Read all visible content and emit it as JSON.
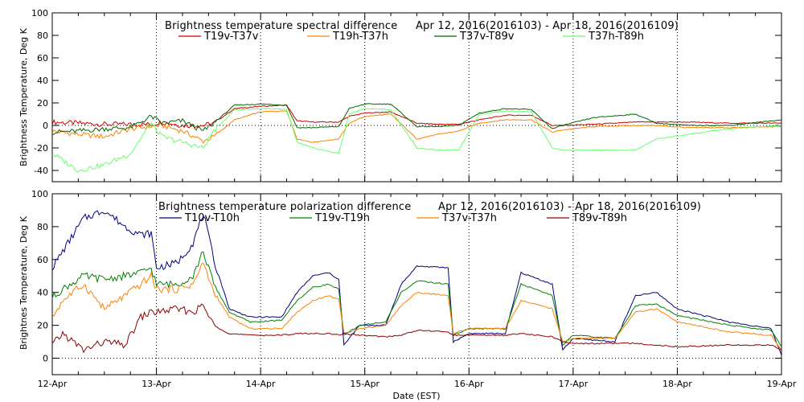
{
  "chart_data": [
    {
      "type": "line",
      "title": "Brightness temperature spectral difference",
      "date_range": "Apr 12, 2016(2016103) - Apr 18, 2016(2016109)",
      "ylabel": "Brightness Temperature, Deg K",
      "xlabel": "",
      "ylim": [
        -50,
        100
      ],
      "yticks": [
        -40,
        -20,
        0,
        20,
        40,
        60,
        80,
        100
      ],
      "xlim": [
        0,
        7
      ],
      "xgrid": [
        1,
        2,
        3,
        4,
        5,
        6
      ],
      "ygrid": [
        0
      ],
      "x": [
        0,
        0.25,
        0.5,
        0.75,
        0.95,
        1.05,
        1.25,
        1.45,
        1.55,
        1.75,
        2.0,
        2.25,
        2.35,
        2.5,
        2.75,
        2.85,
        3.0,
        3.25,
        3.5,
        3.7,
        3.9,
        4.1,
        4.35,
        4.6,
        4.8,
        4.9,
        5.2,
        5.6,
        5.8,
        6.1,
        6.5,
        7.0
      ],
      "series": [
        {
          "name": "T19v-T37v",
          "color": "#cc0000",
          "values": [
            3,
            2,
            1,
            1,
            1,
            3,
            0,
            0,
            2,
            15,
            17,
            18,
            4,
            3,
            3,
            8,
            11,
            12,
            2,
            1,
            1,
            5,
            9,
            9,
            0,
            0,
            1,
            3,
            3,
            3,
            2,
            2
          ]
        },
        {
          "name": "T19h-T37h",
          "color": "#ff8000",
          "values": [
            -5,
            -8,
            -10,
            -3,
            -1,
            0,
            -5,
            -14,
            -10,
            5,
            12,
            13,
            -12,
            -15,
            -12,
            2,
            8,
            10,
            -12,
            -8,
            -5,
            2,
            5,
            5,
            -6,
            -4,
            -1,
            0,
            0,
            -2,
            -2,
            -1
          ]
        },
        {
          "name": "T37v-T89v",
          "color": "#006400",
          "values": [
            -6,
            -5,
            -3,
            -2,
            8,
            2,
            4,
            -5,
            2,
            18,
            19,
            18,
            -2,
            -2,
            -1,
            15,
            19,
            19,
            -1,
            -1,
            0,
            11,
            15,
            14,
            -3,
            0,
            7,
            10,
            2,
            0,
            0,
            5
          ]
        },
        {
          "name": "T37h-T89h",
          "color": "#66ff66",
          "values": [
            -25,
            -40,
            -35,
            -25,
            2,
            -10,
            -15,
            -20,
            -5,
            14,
            15,
            14,
            -15,
            -20,
            -25,
            10,
            15,
            14,
            -20,
            -22,
            -22,
            10,
            13,
            12,
            -20,
            -22,
            -22,
            -22,
            -12,
            -8,
            -3,
            0
          ]
        }
      ]
    },
    {
      "type": "line",
      "title": "Brightness temperature polarization difference",
      "date_range": "Apr 12, 2016(2016103) - Apr 18, 2016(2016109)",
      "ylabel": "Brightnes Temperature, Deg K",
      "xlabel": "Date (EST)",
      "ylim": [
        -10,
        100
      ],
      "yticks": [
        0,
        20,
        40,
        60,
        80,
        100
      ],
      "xlim": [
        0,
        7
      ],
      "xticks": [
        "12-Apr",
        "13-Apr",
        "14-Apr",
        "15-Apr",
        "16-Apr",
        "17-Apr",
        "18-Apr",
        "19-Apr"
      ],
      "xgrid": [
        1,
        2,
        3,
        4,
        5,
        6
      ],
      "ygrid": [
        0
      ],
      "x": [
        0,
        0.1,
        0.3,
        0.5,
        0.7,
        0.85,
        0.95,
        1.0,
        1.2,
        1.35,
        1.45,
        1.55,
        1.7,
        1.9,
        2.2,
        2.35,
        2.5,
        2.65,
        2.75,
        2.8,
        2.95,
        3.2,
        3.35,
        3.5,
        3.8,
        3.85,
        4.0,
        4.35,
        4.5,
        4.8,
        4.9,
        5.0,
        5.4,
        5.6,
        5.8,
        6.0,
        6.5,
        6.9,
        7.0
      ],
      "series": [
        {
          "name": "T10v-T10h",
          "color": "#000080",
          "values": [
            55,
            65,
            85,
            90,
            80,
            75,
            76,
            55,
            58,
            70,
            88,
            60,
            30,
            25,
            25,
            40,
            50,
            52,
            48,
            8,
            20,
            20,
            45,
            56,
            55,
            10,
            15,
            15,
            52,
            45,
            5,
            12,
            10,
            38,
            40,
            30,
            22,
            18,
            2
          ]
        },
        {
          "name": "T19v-T19h",
          "color": "#008000",
          "values": [
            37,
            42,
            50,
            48,
            50,
            52,
            55,
            45,
            45,
            50,
            65,
            45,
            28,
            22,
            23,
            35,
            43,
            45,
            42,
            14,
            20,
            22,
            40,
            47,
            45,
            14,
            18,
            18,
            45,
            38,
            8,
            14,
            12,
            32,
            33,
            26,
            20,
            17,
            7
          ]
        },
        {
          "name": "T37v-T37h",
          "color": "#ff8000",
          "values": [
            25,
            35,
            45,
            30,
            38,
            45,
            50,
            42,
            42,
            45,
            58,
            40,
            25,
            18,
            18,
            28,
            35,
            38,
            36,
            15,
            18,
            20,
            32,
            40,
            38,
            15,
            18,
            18,
            35,
            30,
            10,
            12,
            12,
            28,
            30,
            22,
            16,
            14,
            5
          ]
        },
        {
          "name": "T89v-T89h",
          "color": "#8b0000",
          "values": [
            8,
            15,
            5,
            10,
            8,
            25,
            28,
            28,
            30,
            28,
            32,
            20,
            15,
            14,
            14,
            15,
            15,
            15,
            14,
            15,
            14,
            13,
            14,
            17,
            16,
            14,
            14,
            14,
            15,
            13,
            10,
            9,
            9,
            9,
            8,
            7,
            8,
            8,
            5
          ]
        }
      ]
    }
  ]
}
